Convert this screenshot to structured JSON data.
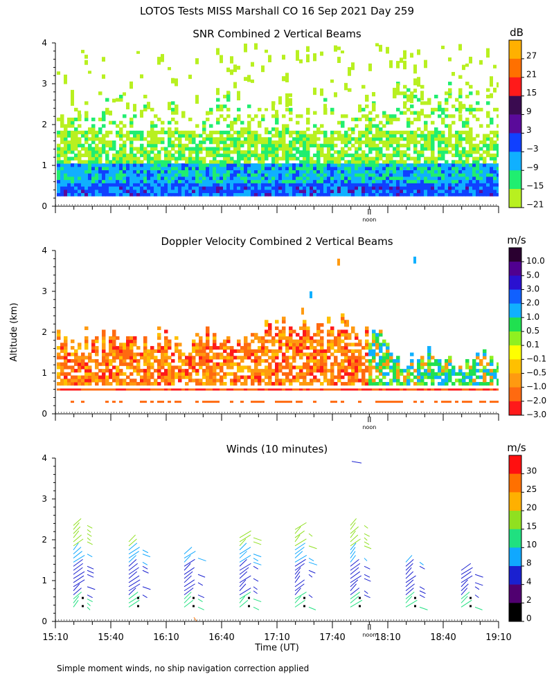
{
  "title": "LOTOS Tests MISS Marshall CO  16 Sep 2021 Day 259",
  "ylabel": "Altitude (km)",
  "xlabel": "Time (UT)",
  "footnote": "Simple moment winds, no ship navigation correction applied",
  "noon_label": "noon",
  "x_ticks": [
    "15:10",
    "15:40",
    "16:10",
    "16:40",
    "17:10",
    "17:40",
    "18:10",
    "18:40",
    "19:10"
  ],
  "chart_data": [
    {
      "type": "heatmap",
      "title": "SNR Combined 2 Vertical Beams",
      "ylim": [
        0,
        4
      ],
      "y_ticks": [
        "0",
        "1",
        "2",
        "3",
        "4"
      ],
      "colorbar": {
        "unit": "dB",
        "labels": [
          "27",
          "21",
          "15",
          "9",
          "3",
          "−3",
          "−9",
          "−15",
          "−21"
        ],
        "colors": [
          "#ffb000",
          "#ff7000",
          "#ff1a1a",
          "#3a0b50",
          "#5a0a9a",
          "#1040ff",
          "#10b0ff",
          "#20ee70",
          "#b8f020"
        ]
      }
    },
    {
      "type": "heatmap",
      "title": "Doppler Velocity Combined 2 Vertical Beams",
      "ylim": [
        0,
        4
      ],
      "y_ticks": [
        "0",
        "1",
        "2",
        "3",
        "4"
      ],
      "colorbar": {
        "unit": "m/s",
        "labels": [
          "10.0",
          "5.0",
          "3.0",
          "2.0",
          "1.0",
          "0.5",
          "0.1",
          "−0.1",
          "−0.5",
          "−1.0",
          "−2.0",
          "−3.0"
        ],
        "colors": [
          "#2a0030",
          "#500090",
          "#2a10d0",
          "#1060ff",
          "#10b0ff",
          "#20e050",
          "#90f020",
          "#ffff00",
          "#ffc000",
          "#ff9a10",
          "#ff6a10",
          "#ff1a1a"
        ]
      }
    },
    {
      "type": "wind-barb",
      "title": "Winds (10 minutes)",
      "ylim": [
        0,
        4
      ],
      "y_ticks": [
        "0",
        "1",
        "2",
        "3",
        "4"
      ],
      "colorbar": {
        "unit": "m/s",
        "labels": [
          "30",
          "25",
          "20",
          "15",
          "10",
          "8",
          "4",
          "2",
          "0"
        ],
        "colors": [
          "#ff1010",
          "#ff7000",
          "#ffb000",
          "#90e020",
          "#20e080",
          "#10a8ff",
          "#1a20d0",
          "#500070",
          "#000000"
        ]
      }
    }
  ]
}
